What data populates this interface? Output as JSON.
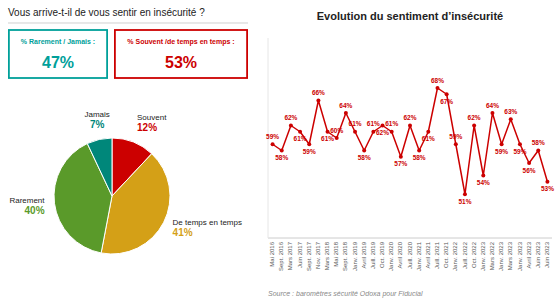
{
  "chart_data": [
    {
      "type": "pie",
      "title": "Vous arrive-t-il de vous sentir en insécurité ?",
      "categories": [
        "Souvent",
        "De temps en temps",
        "Rarement",
        "Jamais"
      ],
      "values": [
        12,
        41,
        40,
        7
      ],
      "value_labels": [
        "12%",
        "41%",
        "40%",
        "7%"
      ],
      "colors": [
        "#cc0000",
        "#d4a017",
        "#5a9a2a",
        "#00877a"
      ],
      "data_labels": true,
      "annotations": [
        {
          "label": "% Rarement / Jamais :",
          "text": "47%",
          "color": "#00a09a"
        },
        {
          "label": "% Souvent /de temps en temps :",
          "text": "53%",
          "color": "#cc0000"
        }
      ]
    },
    {
      "type": "line",
      "title": "Evolution du sentiment d’insécurité",
      "categories": [
        "Mai\n2016",
        "Sept.\n2016",
        "Mars\n2017",
        "Juin\n2017",
        "Sept.\n2017",
        "Nov.\n2017",
        "Mars\n2018",
        "Mai\n2018",
        "Sept.\n2018",
        "Janv.\n2019",
        "Avril\n2019",
        "Juill.\n2019",
        "Oct.\n2019",
        "Janv.\n2020",
        "Avril\n2020",
        "Juill.\n2020",
        "Janv.\n2021",
        "Avril\n2021",
        "Juill.\n2021",
        "Oct.\n2021",
        "Janv.\n2022",
        "Juill.\n2022",
        "Oct.\n2022",
        "Janv.\n2023",
        "Mars\n2022",
        "Janv.\n2023",
        "Mars\n2023",
        "Janv.\n2023",
        "Avril\n2023",
        "Juin\n2023",
        "Juin\n2023"
      ],
      "values": [
        59,
        58,
        62,
        61,
        59,
        66,
        61,
        60,
        64,
        61,
        58,
        61,
        62,
        61,
        57,
        62,
        58,
        61,
        68,
        67,
        59,
        51,
        62,
        54,
        64,
        59,
        63,
        59,
        56,
        58,
        53
      ],
      "value_labels": [
        "59%",
        "58%",
        "62%",
        "61%",
        "59%",
        "66%",
        "61%",
        "60%",
        "64%",
        "61%",
        "58%",
        "61%",
        "62%",
        "61%",
        "57%",
        "62%",
        "58%",
        "61%",
        "68%",
        "67%",
        "59%",
        "51%",
        "62%",
        "54%",
        "64%",
        "59%",
        "63%",
        "59%",
        "56%",
        "58%",
        "53%"
      ],
      "color": "#cc0000",
      "marker": "circle",
      "data_labels": true,
      "ylim": [
        44,
        76
      ],
      "yticks": [],
      "tick_labels": "x",
      "source": "Source : baromètres sécurité Odoxa pour Fiducial"
    }
  ]
}
